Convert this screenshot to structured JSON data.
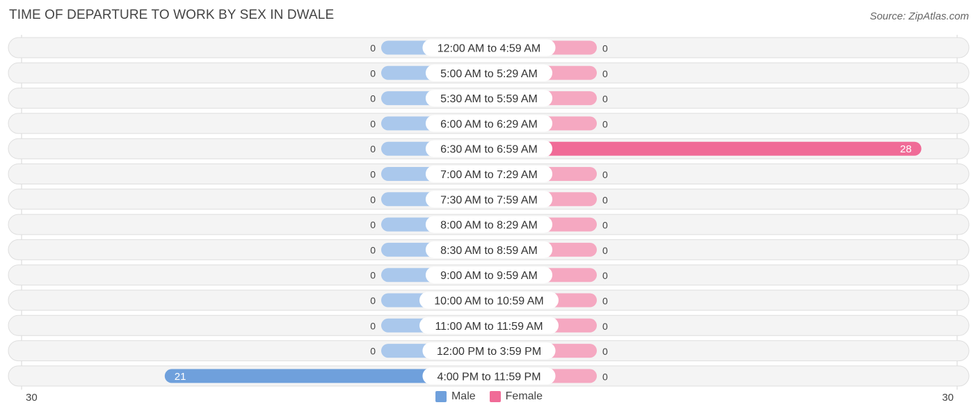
{
  "title": "TIME OF DEPARTURE TO WORK BY SEX IN DWALE",
  "source": "Source: ZipAtlas.com",
  "colors": {
    "male": "#6fa0dc",
    "male_light": "#aac8ec",
    "female": "#f06b97",
    "female_light": "#f5a8c1",
    "row_bg": "#efefef",
    "row_border": "#dedede"
  },
  "legend": {
    "male": "Male",
    "female": "Female"
  },
  "axis": {
    "left_label": "30",
    "right_label": "30"
  },
  "chart_data": {
    "type": "bar",
    "orientation": "horizontal-diverging",
    "title": "TIME OF DEPARTURE TO WORK BY SEX IN DWALE",
    "xlim": [
      -30,
      30
    ],
    "categories": [
      "12:00 AM to 4:59 AM",
      "5:00 AM to 5:29 AM",
      "5:30 AM to 5:59 AM",
      "6:00 AM to 6:29 AM",
      "6:30 AM to 6:59 AM",
      "7:00 AM to 7:29 AM",
      "7:30 AM to 7:59 AM",
      "8:00 AM to 8:29 AM",
      "8:30 AM to 8:59 AM",
      "9:00 AM to 9:59 AM",
      "10:00 AM to 10:59 AM",
      "11:00 AM to 11:59 AM",
      "12:00 PM to 3:59 PM",
      "4:00 PM to 11:59 PM"
    ],
    "series": [
      {
        "name": "Male",
        "values": [
          0,
          0,
          0,
          0,
          0,
          0,
          0,
          0,
          0,
          0,
          0,
          0,
          0,
          21
        ]
      },
      {
        "name": "Female",
        "values": [
          0,
          0,
          0,
          0,
          28,
          0,
          0,
          0,
          0,
          0,
          0,
          0,
          0,
          0
        ]
      }
    ],
    "legend_position": "bottom-center"
  }
}
